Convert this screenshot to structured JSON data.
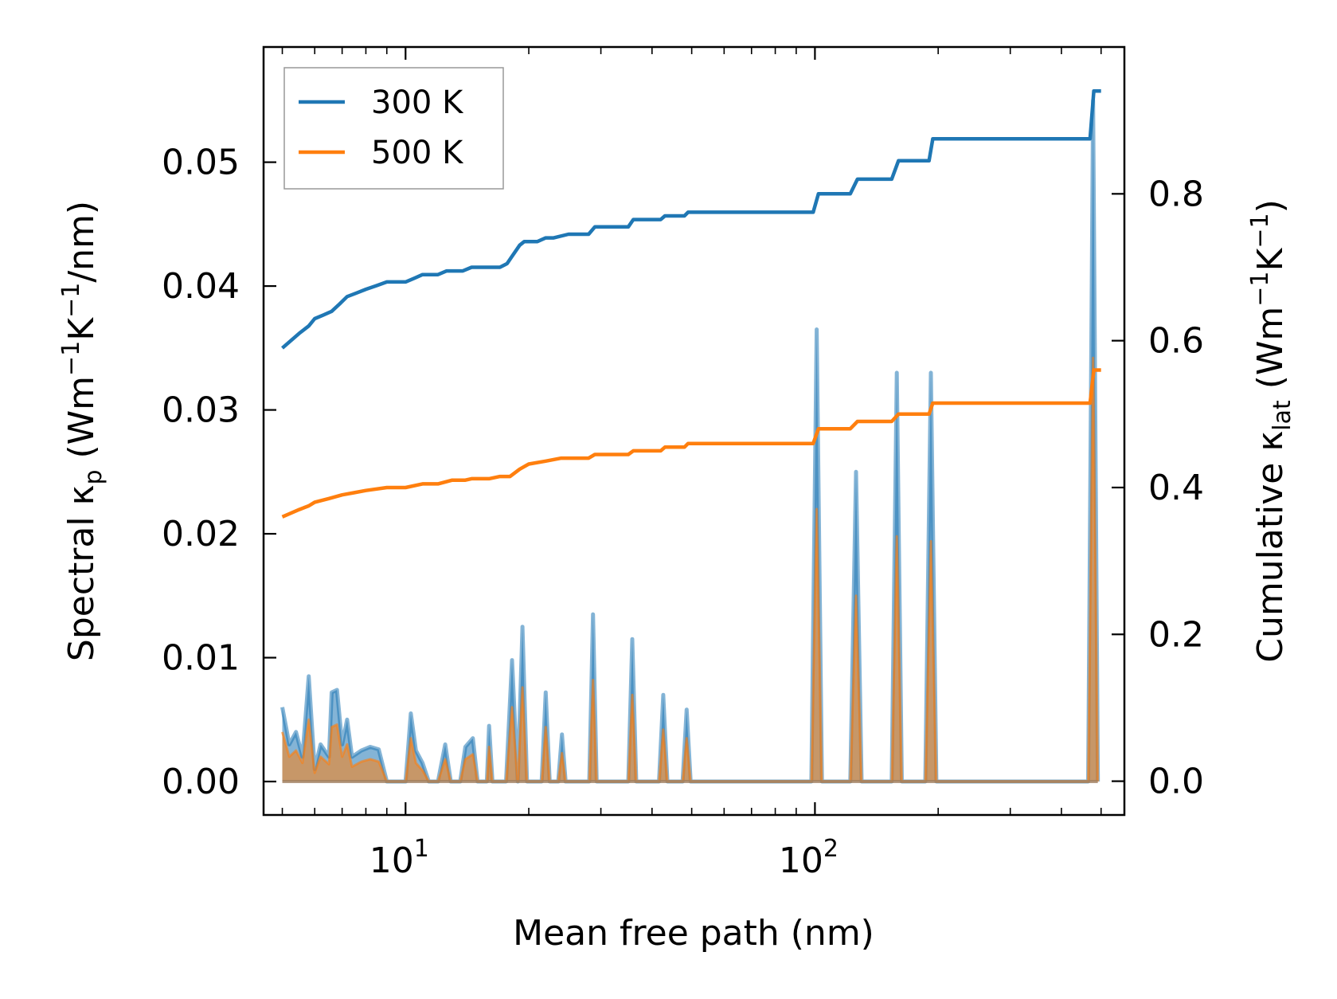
{
  "chart_data": {
    "type": "line",
    "x_scale": "log",
    "xlim": [
      4.5,
      570
    ],
    "xlabel": "Mean free path (nm)",
    "x_ticks": [
      {
        "value": 10,
        "base": "10",
        "exp": "1"
      },
      {
        "value": 100,
        "base": "10",
        "exp": "2"
      }
    ],
    "y_left": {
      "label_main": "Spectral κ",
      "label_sub": "p",
      "label_tail": " (Wm",
      "label_unit_parts": [
        "−1",
        "K",
        "−1",
        "/nm)"
      ],
      "ylim": [
        -0.0027,
        0.0593
      ],
      "ticks": [
        0.0,
        0.01,
        0.02,
        0.03,
        0.04,
        0.05
      ],
      "tick_labels": [
        "0.00",
        "0.01",
        "0.02",
        "0.03",
        "0.04",
        "0.05"
      ]
    },
    "y_right": {
      "label_main": "Cumulative κ",
      "label_sub": "lat",
      "label_tail": " (Wm",
      "label_unit_parts": [
        "−1",
        "K",
        "−1",
        ")"
      ],
      "ylim": [
        -0.046,
        1.0
      ],
      "ticks": [
        0.0,
        0.2,
        0.4,
        0.6,
        0.8
      ],
      "tick_labels": [
        "0.0",
        "0.2",
        "0.4",
        "0.6",
        "0.8"
      ]
    },
    "legend": {
      "position": "top-left",
      "entries": [
        "300 K",
        "500 K"
      ]
    },
    "colors": {
      "300 K": "#1f77b4",
      "500 K": "#ff7f0e",
      "fill_overlap": "#a08060"
    },
    "series": [
      {
        "name": "300 K",
        "axis": "right",
        "kind": "cumulative",
        "points": [
          [
            5.0,
            0.59
          ],
          [
            5.5,
            0.61
          ],
          [
            5.8,
            0.62
          ],
          [
            6.0,
            0.63
          ],
          [
            6.3,
            0.635
          ],
          [
            6.6,
            0.64
          ],
          [
            6.9,
            0.65
          ],
          [
            7.2,
            0.66
          ],
          [
            7.6,
            0.665
          ],
          [
            8.0,
            0.67
          ],
          [
            8.5,
            0.675
          ],
          [
            9.0,
            0.68
          ],
          [
            10.0,
            0.68
          ],
          [
            10.5,
            0.685
          ],
          [
            11.0,
            0.69
          ],
          [
            12.0,
            0.69
          ],
          [
            12.6,
            0.695
          ],
          [
            13.8,
            0.695
          ],
          [
            14.5,
            0.7
          ],
          [
            16.0,
            0.7
          ],
          [
            17.0,
            0.7
          ],
          [
            17.7,
            0.705
          ],
          [
            18.2,
            0.715
          ],
          [
            19.0,
            0.73
          ],
          [
            19.5,
            0.735
          ],
          [
            21.0,
            0.735
          ],
          [
            22.0,
            0.74
          ],
          [
            23.0,
            0.74
          ],
          [
            25.0,
            0.745
          ],
          [
            28.0,
            0.745
          ],
          [
            29.0,
            0.755
          ],
          [
            35.0,
            0.755
          ],
          [
            36.0,
            0.765
          ],
          [
            42.0,
            0.765
          ],
          [
            43.0,
            0.77
          ],
          [
            48.0,
            0.77
          ],
          [
            49.0,
            0.775
          ],
          [
            99.0,
            0.775
          ],
          [
            102.0,
            0.8
          ],
          [
            122.0,
            0.8
          ],
          [
            127.0,
            0.82
          ],
          [
            154.0,
            0.82
          ],
          [
            160.0,
            0.845
          ],
          [
            190.0,
            0.845
          ],
          [
            194.0,
            0.875
          ],
          [
            470.0,
            0.875
          ],
          [
            480.0,
            0.94
          ],
          [
            500.0,
            0.94
          ]
        ]
      },
      {
        "name": "500 K",
        "axis": "right",
        "kind": "cumulative",
        "points": [
          [
            5.0,
            0.36
          ],
          [
            5.5,
            0.37
          ],
          [
            5.8,
            0.375
          ],
          [
            6.0,
            0.38
          ],
          [
            6.5,
            0.385
          ],
          [
            7.0,
            0.39
          ],
          [
            7.5,
            0.393
          ],
          [
            8.0,
            0.396
          ],
          [
            9.0,
            0.4
          ],
          [
            10.0,
            0.4
          ],
          [
            11.0,
            0.405
          ],
          [
            12.0,
            0.405
          ],
          [
            13.0,
            0.41
          ],
          [
            14.0,
            0.41
          ],
          [
            14.5,
            0.412
          ],
          [
            16.0,
            0.412
          ],
          [
            17.0,
            0.415
          ],
          [
            18.0,
            0.415
          ],
          [
            19.0,
            0.425
          ],
          [
            20.0,
            0.432
          ],
          [
            22.0,
            0.436
          ],
          [
            24.0,
            0.44
          ],
          [
            28.0,
            0.44
          ],
          [
            29.0,
            0.445
          ],
          [
            35.0,
            0.445
          ],
          [
            36.0,
            0.45
          ],
          [
            42.0,
            0.45
          ],
          [
            43.0,
            0.455
          ],
          [
            48.0,
            0.455
          ],
          [
            49.0,
            0.46
          ],
          [
            99.0,
            0.46
          ],
          [
            102.0,
            0.48
          ],
          [
            122.0,
            0.48
          ],
          [
            127.0,
            0.49
          ],
          [
            154.0,
            0.49
          ],
          [
            160.0,
            0.5
          ],
          [
            190.0,
            0.5
          ],
          [
            194.0,
            0.515
          ],
          [
            470.0,
            0.515
          ],
          [
            480.0,
            0.56
          ],
          [
            500.0,
            0.56
          ]
        ]
      },
      {
        "name": "300 K spectral",
        "axis": "left",
        "kind": "spectral",
        "points": [
          [
            5.0,
            0.006
          ],
          [
            5.2,
            0.003
          ],
          [
            5.4,
            0.004
          ],
          [
            5.6,
            0.002
          ],
          [
            5.8,
            0.0085
          ],
          [
            6.0,
            0.001
          ],
          [
            6.2,
            0.003
          ],
          [
            6.5,
            0.002
          ],
          [
            6.6,
            0.0072
          ],
          [
            6.8,
            0.0074
          ],
          [
            7.0,
            0.003
          ],
          [
            7.2,
            0.005
          ],
          [
            7.4,
            0.002
          ],
          [
            7.8,
            0.0025
          ],
          [
            8.2,
            0.0028
          ],
          [
            8.6,
            0.0026
          ],
          [
            9.0,
            0.0
          ],
          [
            10.0,
            0.0
          ],
          [
            10.3,
            0.0055
          ],
          [
            10.6,
            0.0025
          ],
          [
            11.0,
            0.0015
          ],
          [
            11.4,
            0.0
          ],
          [
            12.0,
            0.0
          ],
          [
            12.5,
            0.003
          ],
          [
            12.9,
            0.0
          ],
          [
            13.6,
            0.0
          ],
          [
            14.0,
            0.0028
          ],
          [
            14.6,
            0.0035
          ],
          [
            15.0,
            0.0
          ],
          [
            15.8,
            0.0
          ],
          [
            16.0,
            0.0045
          ],
          [
            16.3,
            0.0
          ],
          [
            17.6,
            0.0
          ],
          [
            18.2,
            0.0098
          ],
          [
            18.8,
            0.0
          ],
          [
            19.3,
            0.0125
          ],
          [
            19.8,
            0.0
          ],
          [
            21.5,
            0.0
          ],
          [
            22.0,
            0.0072
          ],
          [
            22.5,
            0.0
          ],
          [
            23.6,
            0.0
          ],
          [
            24.1,
            0.0038
          ],
          [
            24.6,
            0.0
          ],
          [
            28.1,
            0.0
          ],
          [
            28.7,
            0.0135
          ],
          [
            29.3,
            0.0
          ],
          [
            35.0,
            0.0
          ],
          [
            35.8,
            0.0115
          ],
          [
            36.6,
            0.0
          ],
          [
            41.6,
            0.0
          ],
          [
            42.6,
            0.007
          ],
          [
            43.6,
            0.0
          ],
          [
            47.5,
            0.0
          ],
          [
            48.6,
            0.0058
          ],
          [
            49.7,
            0.0
          ],
          [
            98.0,
            0.0
          ],
          [
            101.0,
            0.0365
          ],
          [
            104.0,
            0.0
          ],
          [
            122.0,
            0.0
          ],
          [
            126.0,
            0.025
          ],
          [
            130.0,
            0.0
          ],
          [
            154.0,
            0.0
          ],
          [
            158.5,
            0.033
          ],
          [
            163.0,
            0.0
          ],
          [
            186.0,
            0.0
          ],
          [
            192.0,
            0.033
          ],
          [
            198.0,
            0.0
          ],
          [
            465.0,
            0.0
          ],
          [
            478.0,
            0.055
          ],
          [
            491.0,
            0.0
          ]
        ]
      },
      {
        "name": "500 K spectral",
        "axis": "left",
        "kind": "spectral",
        "points": [
          [
            5.0,
            0.004
          ],
          [
            5.2,
            0.002
          ],
          [
            5.4,
            0.0025
          ],
          [
            5.6,
            0.0015
          ],
          [
            5.8,
            0.005
          ],
          [
            6.0,
            0.0007
          ],
          [
            6.2,
            0.002
          ],
          [
            6.5,
            0.0014
          ],
          [
            6.6,
            0.0044
          ],
          [
            6.8,
            0.0046
          ],
          [
            7.0,
            0.002
          ],
          [
            7.2,
            0.003
          ],
          [
            7.4,
            0.0012
          ],
          [
            7.8,
            0.0016
          ],
          [
            8.2,
            0.0018
          ],
          [
            8.6,
            0.0016
          ],
          [
            9.0,
            0.0
          ],
          [
            10.0,
            0.0
          ],
          [
            10.3,
            0.0035
          ],
          [
            10.6,
            0.0015
          ],
          [
            11.0,
            0.0009
          ],
          [
            11.4,
            0.0
          ],
          [
            12.0,
            0.0
          ],
          [
            12.5,
            0.0018
          ],
          [
            12.9,
            0.0
          ],
          [
            13.6,
            0.0
          ],
          [
            14.0,
            0.0018
          ],
          [
            14.6,
            0.0022
          ],
          [
            15.0,
            0.0
          ],
          [
            15.8,
            0.0
          ],
          [
            16.0,
            0.0028
          ],
          [
            16.3,
            0.0
          ],
          [
            17.6,
            0.0
          ],
          [
            18.2,
            0.006
          ],
          [
            18.8,
            0.0
          ],
          [
            19.3,
            0.0076
          ],
          [
            19.8,
            0.0
          ],
          [
            21.5,
            0.0
          ],
          [
            22.0,
            0.0044
          ],
          [
            22.5,
            0.0
          ],
          [
            23.6,
            0.0
          ],
          [
            24.1,
            0.0023
          ],
          [
            24.6,
            0.0
          ],
          [
            28.1,
            0.0
          ],
          [
            28.7,
            0.0082
          ],
          [
            29.3,
            0.0
          ],
          [
            35.0,
            0.0
          ],
          [
            35.8,
            0.007
          ],
          [
            36.6,
            0.0
          ],
          [
            41.6,
            0.0
          ],
          [
            42.6,
            0.0042
          ],
          [
            43.6,
            0.0
          ],
          [
            47.5,
            0.0
          ],
          [
            48.6,
            0.0035
          ],
          [
            49.7,
            0.0
          ],
          [
            98.0,
            0.0
          ],
          [
            101.0,
            0.022
          ],
          [
            104.0,
            0.0
          ],
          [
            122.0,
            0.0
          ],
          [
            126.0,
            0.015
          ],
          [
            130.0,
            0.0
          ],
          [
            154.0,
            0.0
          ],
          [
            158.5,
            0.0198
          ],
          [
            163.0,
            0.0
          ],
          [
            186.0,
            0.0
          ],
          [
            192.0,
            0.0194
          ],
          [
            198.0,
            0.0
          ],
          [
            465.0,
            0.0
          ],
          [
            478.0,
            0.0342
          ],
          [
            491.0,
            0.0
          ]
        ]
      }
    ]
  }
}
